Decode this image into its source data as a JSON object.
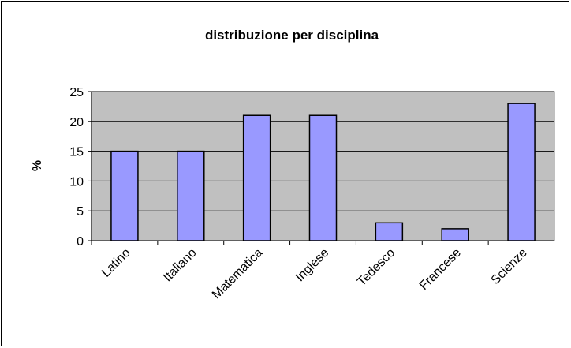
{
  "chart_data": {
    "type": "bar",
    "title": "distribuzione per disciplina",
    "ylabel": "%",
    "categories": [
      "Latino",
      "Italiano",
      "Matematica",
      "Inglese",
      "Tedesco",
      "Francese",
      "Scienze"
    ],
    "values": [
      15,
      15,
      21,
      21,
      3,
      2,
      23
    ],
    "color": "#9999ff",
    "ylim": [
      0,
      25
    ],
    "yticks": [
      0,
      5,
      10,
      15,
      20,
      25
    ],
    "grid": true
  }
}
